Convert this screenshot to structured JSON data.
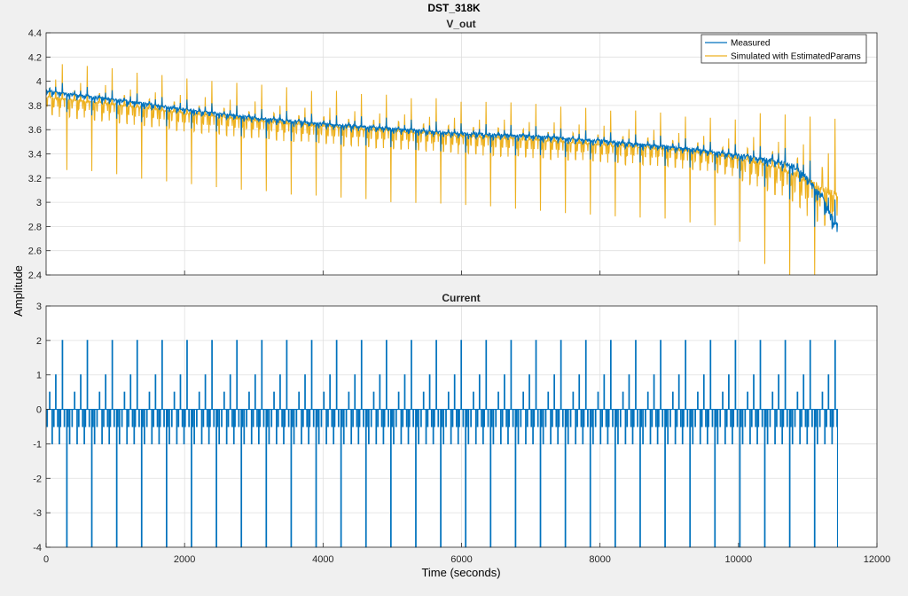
{
  "chart_data": {
    "type": "line",
    "title": "DST_318K",
    "xlabel": "Time (seconds)",
    "ylabel": "Amplitude",
    "grid": true,
    "x_ticks": [
      "0",
      "2000",
      "4000",
      "6000",
      "8000",
      "10000",
      "12000"
    ],
    "xlim": [
      0,
      12000
    ],
    "colors": {
      "measured": "#0072bd",
      "simulated": "#edb120",
      "current": "#0072bd",
      "grid": "#dfdfdf",
      "axes_bg": "#ffffff"
    },
    "subplots": [
      {
        "title": "V_out",
        "ylim": [
          2.4,
          4.4
        ],
        "y_ticks": [
          "2.4",
          "2.6",
          "2.8",
          "3",
          "3.2",
          "3.4",
          "3.6",
          "3.8",
          "4",
          "4.2",
          "4.4"
        ],
        "legend": {
          "placement": "top-right",
          "entries": [
            "Measured",
            "Simulated with EstimatedParams"
          ]
        },
        "series": [
          {
            "name": "Measured",
            "x": [
              0,
              1000,
              2000,
              3000,
              4000,
              5000,
              6000,
              7000,
              8000,
              9000,
              9500,
              10000,
              10500,
              10800,
              11000,
              11200,
              11400
            ],
            "y": [
              3.92,
              3.85,
              3.77,
              3.7,
              3.65,
              3.61,
              3.57,
              3.55,
              3.51,
              3.46,
              3.43,
              3.39,
              3.35,
              3.3,
              3.2,
              3.05,
              2.82
            ]
          },
          {
            "name": "Simulated with EstimatedParams",
            "x": [
              0,
              1000,
              2000,
              3000,
              4000,
              5000,
              6000,
              7000,
              8000,
              9000,
              9500,
              10000,
              10500,
              10800,
              11000,
              11200,
              11400
            ],
            "y": [
              3.87,
              3.81,
              3.74,
              3.68,
              3.63,
              3.59,
              3.55,
              3.52,
              3.48,
              3.44,
              3.41,
              3.36,
              3.3,
              3.24,
              3.18,
              3.12,
              3.06
            ]
          }
        ]
      },
      {
        "title": "Current",
        "ylim": [
          -4,
          3
        ],
        "y_ticks": [
          "-4",
          "-3",
          "-2",
          "-1",
          "0",
          "1",
          "2",
          "3"
        ],
        "series": [
          {
            "name": "Current",
            "profile_t": [
              0,
              12,
              20,
              48,
              56,
              84,
              92,
              108,
              116,
              136,
              144,
              164,
              172,
              188,
              196,
              204,
              212,
              232,
              240,
              260,
              268,
              296,
              304,
              312,
              320,
              336,
              344,
              360
            ],
            "profile_i": [
              0,
              -0.5,
              0,
              0.5,
              0,
              -1,
              0,
              -0.5,
              0,
              1,
              0,
              -0.5,
              0,
              -1,
              0,
              -0.5,
              0,
              2,
              0,
              -0.5,
              0,
              -4,
              0,
              -0.5,
              0,
              -1,
              0,
              0
            ],
            "cycle_s": 360,
            "end_s": 11430
          }
        ]
      }
    ]
  }
}
